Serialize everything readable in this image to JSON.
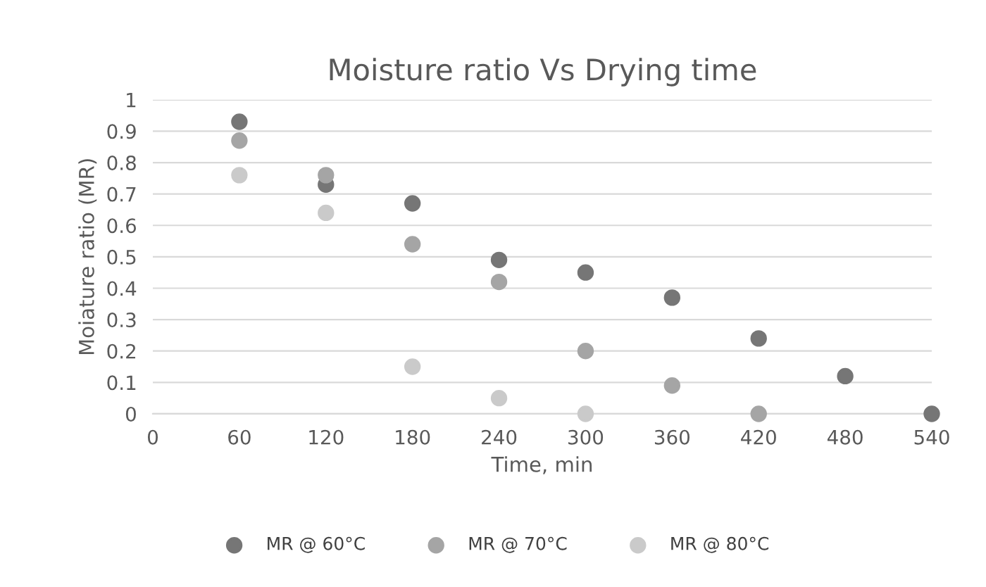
{
  "chart_data": {
    "type": "scatter",
    "title": "Moisture ratio Vs Drying time",
    "xlabel": "Time, min",
    "ylabel": "Moiature ratio (MR)",
    "xlim": [
      0,
      540
    ],
    "xticks": [
      0,
      60,
      120,
      180,
      240,
      300,
      360,
      420,
      480,
      540
    ],
    "ylim": [
      0,
      1
    ],
    "yticks": [
      0,
      0.1,
      0.2,
      0.3,
      0.4,
      0.5,
      0.6,
      0.7,
      0.8,
      0.9,
      1
    ],
    "grid": "y",
    "legend": "bottom",
    "marker": "circle",
    "series": [
      {
        "name": "MR @ 60°C",
        "color": "#767676",
        "x": [
          60,
          120,
          180,
          240,
          300,
          360,
          420,
          480,
          540
        ],
        "values": [
          0.93,
          0.73,
          0.67,
          0.49,
          0.45,
          0.37,
          0.24,
          0.12,
          0
        ]
      },
      {
        "name": "MR @ 70°C",
        "color": "#a5a5a5",
        "x": [
          60,
          120,
          180,
          240,
          300,
          360,
          420
        ],
        "values": [
          0.87,
          0.76,
          0.54,
          0.42,
          0.2,
          0.09,
          0
        ]
      },
      {
        "name": "MR @ 80°C",
        "color": "#cacaca",
        "x": [
          60,
          120,
          180,
          240,
          300
        ],
        "values": [
          0.76,
          0.64,
          0.15,
          0.05,
          0
        ]
      }
    ]
  }
}
